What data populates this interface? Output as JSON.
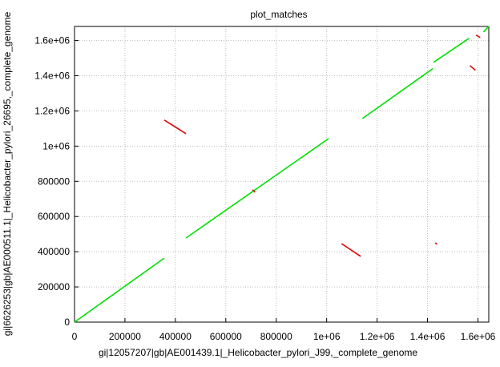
{
  "chart_data": {
    "type": "line",
    "title": "plot_matches",
    "x_label": "gi|12057207|gb|AE001439.1|_Helicobacter_pylori_J99,_complete_genome",
    "y_label": "gi|6626253|gb|AE000511.1|_Helicobacter_pylori_26695,_complete_genome",
    "xlim": [
      0,
      1643000
    ],
    "ylim": [
      0,
      1680000
    ],
    "xticks": [
      0,
      200000,
      400000,
      600000,
      800000,
      {
        "value": 1000000,
        "label": "1e+06"
      },
      {
        "value": 1200000,
        "label": "1.2e+06"
      },
      {
        "value": 1400000,
        "label": "1.4e+06"
      },
      {
        "value": 1600000,
        "label": "1.6e+06"
      }
    ],
    "yticks": [
      0,
      200000,
      400000,
      600000,
      800000,
      {
        "value": 1000000,
        "label": "1e+06"
      },
      {
        "value": 1200000,
        "label": "1.2e+06"
      },
      {
        "value": 1400000,
        "label": "1.4e+06"
      },
      {
        "value": 1600000,
        "label": "1.6e+06"
      }
    ],
    "grid": true,
    "series": [
      {
        "color": "#00e000",
        "x": [
          0,
          356000,
          null,
          442000,
          1008000,
          null,
          1142000,
          1421000,
          null,
          1424000,
          1565000,
          null,
          1622000,
          1643000
        ],
        "values": [
          0,
          364000,
          null,
          478000,
          1043000,
          null,
          1157000,
          1440000,
          null,
          1476000,
          1613000,
          null,
          1649000,
          1681000
        ]
      },
      {
        "color": "#e00000",
        "x": [
          356000,
          442000,
          null,
          1059000,
          1135000,
          null,
          1568000,
          1590000,
          null,
          1593000,
          1609000,
          null,
          706000,
          716000,
          null,
          1431000,
          1437000
        ],
        "values": [
          1148000,
          1071000,
          null,
          446000,
          374000,
          null,
          1458000,
          1431000,
          null,
          1631000,
          1617000,
          null,
          752000,
          738000,
          null,
          451000,
          442000
        ]
      }
    ]
  }
}
